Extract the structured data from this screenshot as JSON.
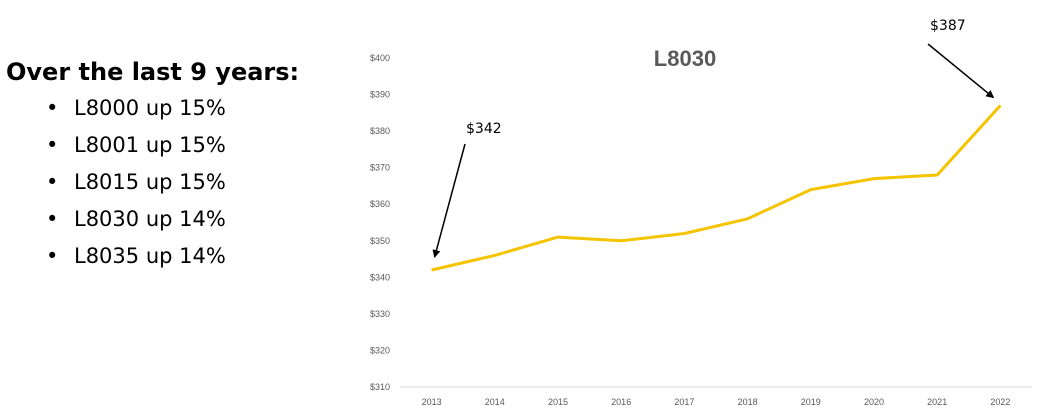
{
  "summary": {
    "heading": "Over the last 9 years:",
    "bullet_char": "•",
    "items": [
      "L8000 up 15%",
      "L8001 up 15%",
      "L8015 up 15%",
      "L8030 up 14%",
      "L8035 up 14%"
    ]
  },
  "chart_data": {
    "type": "line",
    "title": "L8030",
    "x": [
      "2013",
      "2014",
      "2015",
      "2016",
      "2017",
      "2018",
      "2019",
      "2020",
      "2021",
      "2022"
    ],
    "series": [
      {
        "values": [
          342,
          346,
          351,
          350,
          352,
          356,
          364,
          367,
          368,
          387
        ]
      }
    ],
    "ylim": [
      310,
      400
    ],
    "y_ticks": [
      310,
      320,
      330,
      340,
      350,
      360,
      370,
      380,
      390,
      400
    ],
    "y_tick_labels": [
      "$310",
      "$320",
      "$330",
      "$340",
      "$350",
      "$360",
      "$370",
      "$380",
      "$390",
      "$400"
    ],
    "xlabel": "",
    "ylabel": "",
    "grid": false,
    "line_color": "#F5C400",
    "axis_color": "#D9D9D9",
    "annotations": [
      {
        "text": "$342",
        "point_index": 0
      },
      {
        "text": "$387",
        "point_index": 9
      }
    ]
  }
}
